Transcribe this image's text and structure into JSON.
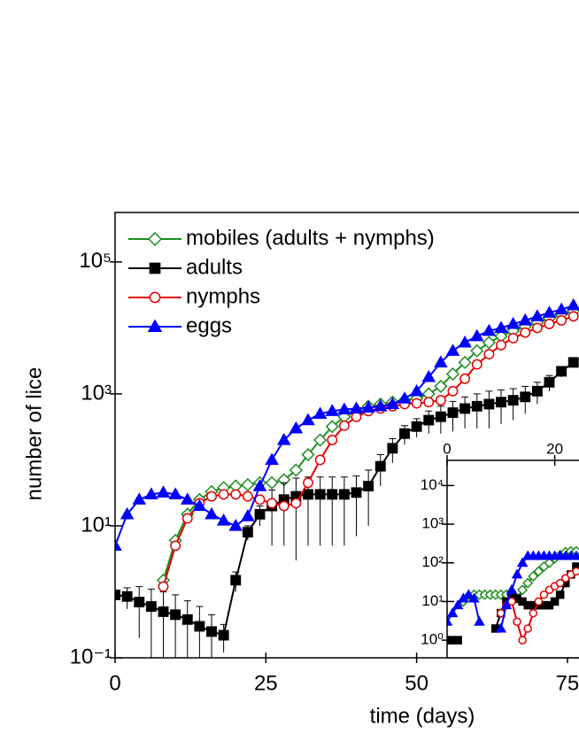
{
  "chart_data": [
    {
      "type": "line",
      "x_label": "time (days)",
      "y_label": "number of lice",
      "log_y": true,
      "legend": "upper left",
      "xlim": [
        0,
        80
      ],
      "ylim": [
        0.1,
        562000
      ],
      "xticks": [
        0,
        25,
        50,
        75
      ],
      "yticks": [
        {
          "value": 0.1,
          "label": "10⁻¹"
        },
        {
          "value": 10,
          "label": "10¹"
        },
        {
          "value": 1000,
          "label": "10³"
        },
        {
          "value": 100000,
          "label": "10⁵"
        }
      ],
      "x": [
        0,
        2,
        4,
        6,
        8,
        10,
        12,
        14,
        16,
        18,
        20,
        22,
        24,
        26,
        28,
        30,
        32,
        34,
        36,
        38,
        40,
        42,
        44,
        46,
        48,
        50,
        52,
        54,
        56,
        58,
        60,
        62,
        64,
        66,
        68,
        70,
        72,
        74,
        76
      ],
      "series": [
        {
          "name": "mobiles (adults + nymphs)",
          "color": "#1e8c1e",
          "marker": "diamond-open",
          "values": [
            null,
            null,
            null,
            null,
            1.5,
            6,
            15,
            25,
            33,
            38,
            40,
            42,
            45,
            45,
            50,
            70,
            120,
            200,
            320,
            450,
            550,
            650,
            700,
            750,
            800,
            850,
            1000,
            1300,
            2000,
            3000,
            4500,
            6000,
            7500,
            9000,
            10500,
            12000,
            14000,
            16000,
            18000
          ]
        },
        {
          "name": "adults",
          "color": "#000000",
          "marker": "square",
          "values": [
            0.9,
            0.85,
            0.7,
            0.6,
            0.5,
            0.45,
            0.38,
            0.3,
            0.25,
            0.22,
            1.5,
            8,
            15,
            20,
            25,
            28,
            30,
            30,
            30,
            30,
            32,
            40,
            80,
            150,
            250,
            320,
            400,
            450,
            520,
            600,
            650,
            700,
            750,
            800,
            900,
            1100,
            1500,
            2200,
            3000
          ],
          "errors": [
            0.1,
            0.3,
            0.5,
            0.5,
            0.5,
            0.45,
            0.35,
            0.3,
            0.2,
            0.1,
            0.5,
            2,
            5,
            15,
            20,
            25,
            25,
            25,
            25,
            25,
            25,
            30,
            40,
            60,
            80,
            100,
            150,
            200,
            250,
            300,
            350,
            400,
            400,
            400,
            400,
            400,
            400,
            400,
            400
          ]
        },
        {
          "name": "nymphs",
          "color": "#e00000",
          "marker": "circle-open",
          "values": [
            null,
            null,
            null,
            null,
            1.2,
            5,
            13,
            22,
            28,
            30,
            30,
            28,
            25,
            22,
            20,
            22,
            45,
            100,
            200,
            330,
            450,
            550,
            600,
            650,
            700,
            720,
            750,
            800,
            1100,
            1700,
            2800,
            4000,
            5500,
            7000,
            8500,
            10000,
            11500,
            13000,
            15000
          ]
        },
        {
          "name": "eggs",
          "color": "#0000ff",
          "marker": "triangle",
          "values": [
            5,
            15,
            25,
            30,
            32,
            30,
            25,
            20,
            15,
            12,
            10,
            14,
            40,
            100,
            200,
            300,
            400,
            500,
            550,
            580,
            600,
            620,
            650,
            700,
            850,
            1100,
            1800,
            3000,
            4500,
            6000,
            7500,
            9000,
            10000,
            11500,
            13000,
            15000,
            17000,
            19000,
            22000
          ]
        }
      ]
    },
    {
      "type": "line",
      "log_y": true,
      "x_axis_position": "top",
      "xlim": [
        0,
        25
      ],
      "ylim": [
        0.35,
        44700
      ],
      "xticks": [
        0,
        20
      ],
      "yticks": [
        {
          "value": 1,
          "label": "10⁰"
        },
        {
          "value": 10,
          "label": "10¹"
        },
        {
          "value": 100,
          "label": "10²"
        },
        {
          "value": 1000,
          "label": "10³"
        },
        {
          "value": 10000,
          "label": "10⁴"
        }
      ],
      "x": [
        0,
        1,
        2,
        3,
        4,
        5,
        6,
        7,
        8,
        9,
        10,
        11,
        12,
        13,
        14,
        15,
        16,
        17,
        18,
        19,
        20,
        21,
        22,
        23,
        24
      ],
      "series": [
        {
          "color": "#1e8c1e",
          "marker": "diamond-open",
          "values": [
            null,
            null,
            null,
            10,
            14,
            15,
            15,
            15,
            15,
            15,
            15,
            15,
            15,
            12,
            20,
            30,
            45,
            60,
            80,
            100,
            130,
            160,
            190,
            200,
            200
          ]
        },
        {
          "color": "#000000",
          "marker": "square",
          "values": [
            1,
            1,
            1,
            null,
            null,
            null,
            null,
            null,
            null,
            2,
            5,
            10,
            15,
            12,
            10,
            8,
            8,
            8,
            8,
            8,
            10,
            15,
            30,
            50,
            80
          ]
        },
        {
          "color": "#e00000",
          "marker": "circle-open",
          "values": [
            null,
            null,
            null,
            null,
            null,
            null,
            null,
            null,
            null,
            null,
            5,
            8,
            10,
            3,
            1,
            2,
            5,
            10,
            15,
            20,
            25,
            30,
            40,
            50,
            60
          ]
        },
        {
          "color": "#0000ff",
          "marker": "triangle",
          "values": [
            3,
            5,
            8,
            12,
            15,
            12,
            3,
            null,
            null,
            null,
            2,
            8,
            20,
            50,
            100,
            150,
            150,
            150,
            150,
            150,
            150,
            150,
            150,
            150,
            150
          ]
        }
      ]
    }
  ]
}
